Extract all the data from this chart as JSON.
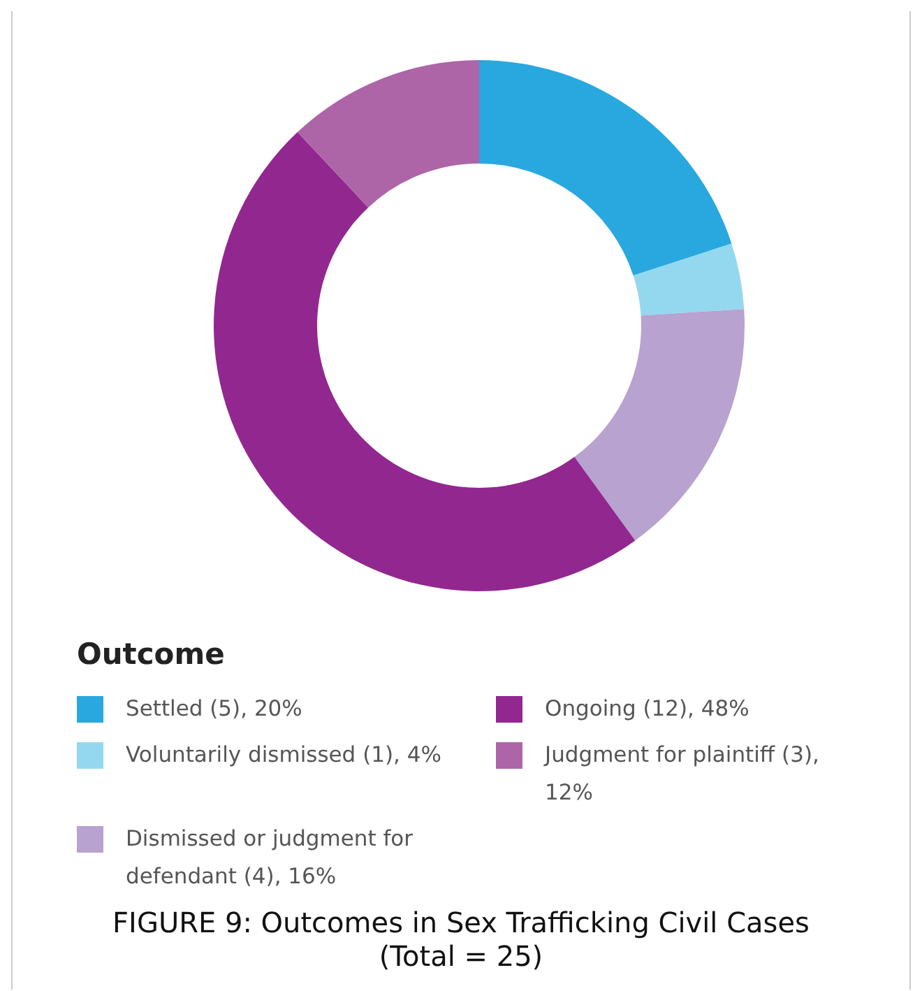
{
  "chart_data": {
    "type": "donut",
    "title": "FIGURE 9: Outcomes in Sex Trafficking Civil Cases",
    "subtitle": "(Total = 25)",
    "legend_title": "Outcome",
    "legend": "bottom",
    "categories": [
      "Settled (5), 20%",
      "Voluntarily dismissed (1), 4%",
      "Dismissed or judgment for defendant (4), 16%",
      "Ongoing (12), 48%",
      "Judgment for plaintiff (3), 12%"
    ],
    "values": [
      20,
      4,
      16,
      48,
      12
    ],
    "colors": [
      "#29a8e0",
      "#94d8ef",
      "#b8a2cf",
      "#92278f",
      "#ad65a8"
    ]
  }
}
